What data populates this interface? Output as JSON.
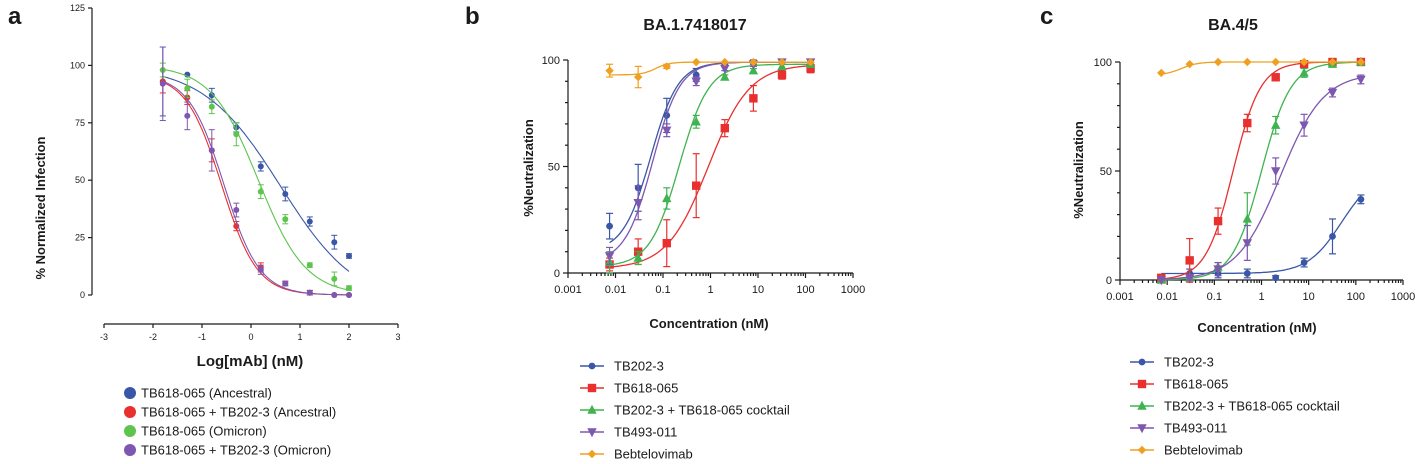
{
  "chart_data": [
    {
      "panel": "a",
      "type": "scatter",
      "title": "",
      "xlabel": "Log[mAb] (nM)",
      "ylabel": "% Normalized Infection",
      "xlim": [
        -3,
        3
      ],
      "ylim": [
        0,
        125
      ],
      "xticks": [
        -3,
        -2,
        -1,
        0,
        1,
        2,
        3
      ],
      "yticks": [
        0,
        25,
        50,
        75,
        100,
        125
      ],
      "legend_position": "bottom",
      "legend_marker": "circle",
      "series": [
        {
          "name": "TB618-065 (Ancestral)",
          "color": "#3a57a7",
          "x": [
            -1.8,
            -1.3,
            -0.8,
            -0.3,
            0.2,
            0.7,
            1.2,
            1.7,
            2.0
          ],
          "y": [
            93,
            96,
            87,
            73,
            56,
            44,
            32,
            23,
            17
          ],
          "err": [
            15,
            0,
            3,
            2,
            2,
            3,
            2,
            3,
            1
          ],
          "fit": {
            "top": 100,
            "bottom": -5,
            "ec50": 0.6,
            "slope": -0.55
          }
        },
        {
          "name": "TB618-065 + TB202-3 (Ancestral)",
          "color": "#e8302f",
          "x": [
            -1.8,
            -1.3,
            -0.8,
            -0.3,
            0.2,
            0.7,
            1.2,
            1.7,
            2.0
          ],
          "y": [
            93,
            86,
            63,
            30,
            12,
            5,
            1,
            0,
            0
          ],
          "err": [
            5,
            3,
            5,
            2,
            2,
            1,
            1,
            0,
            0
          ],
          "fit": {
            "top": 96,
            "bottom": 0,
            "ec50": -0.6,
            "slope": -1.2
          }
        },
        {
          "name": "TB618-065 (Omicron)",
          "color": "#5ec44e",
          "x": [
            -1.8,
            -1.3,
            -0.8,
            -0.3,
            0.2,
            0.7,
            1.2,
            1.7,
            2.0
          ],
          "y": [
            98,
            90,
            82,
            70,
            45,
            33,
            13,
            7,
            3
          ],
          "err": [
            3,
            4,
            3,
            5,
            3,
            2,
            1,
            3,
            1
          ],
          "fit": {
            "top": 100,
            "bottom": 0,
            "ec50": 0.15,
            "slope": -0.9
          }
        },
        {
          "name": "TB618-065 + TB202-3 (Omicron)",
          "color": "#7e57b0",
          "x": [
            -1.8,
            -1.3,
            -0.8,
            -0.3,
            0.2,
            0.7,
            1.2,
            1.7,
            2.0
          ],
          "y": [
            92,
            78,
            63,
            37,
            11,
            5,
            1,
            0,
            0
          ],
          "err": [
            16,
            6,
            9,
            3,
            2,
            1,
            1,
            0,
            0
          ]
        }
      ]
    },
    {
      "panel": "b",
      "type": "scatter",
      "title": "BA.1.7418017",
      "xlabel": "Concentration (nM)",
      "ylabel": "%Neutralization",
      "xscale": "log",
      "xlim": [
        0.001,
        1000
      ],
      "ylim": [
        0,
        100
      ],
      "xticks": [
        "0.001",
        "0.01",
        "0.1",
        "1",
        "10",
        "100",
        "1000"
      ],
      "yticks": [
        0,
        50,
        100
      ],
      "legend_position": "bottom",
      "series": [
        {
          "name": "TB202-3",
          "color": "#3a57a7",
          "marker": "circle",
          "x": [
            0.0075,
            0.03,
            0.12,
            0.5,
            2,
            8,
            32,
            128
          ],
          "y": [
            22,
            40,
            74,
            93,
            98,
            99,
            99,
            99
          ],
          "err": [
            6,
            11,
            8,
            3,
            1,
            1,
            1,
            0
          ],
          "fit": {
            "bottom": 10,
            "top": 99,
            "ec50": 0.055,
            "hill": 1.5
          }
        },
        {
          "name": "TB618-065",
          "color": "#e8302f",
          "marker": "square",
          "x": [
            0.0075,
            0.03,
            0.12,
            0.5,
            2,
            8,
            32,
            128
          ],
          "y": [
            4,
            10,
            14,
            41,
            68,
            82,
            93,
            96
          ],
          "err": [
            3,
            6,
            11,
            15,
            4,
            6,
            2,
            2
          ],
          "fit": {
            "bottom": 2,
            "top": 98,
            "ec50": 0.9,
            "hill": 1.0
          }
        },
        {
          "name": "TB202-3 + TB618-065 cocktail",
          "color": "#3fb34f",
          "marker": "triangle",
          "x": [
            0.0075,
            0.03,
            0.12,
            0.5,
            2,
            8,
            32,
            128
          ],
          "y": [
            5,
            7,
            35,
            71,
            92,
            95,
            97,
            98
          ],
          "err": [
            5,
            3,
            5,
            3,
            1,
            1,
            0,
            0
          ],
          "fit": {
            "bottom": 3,
            "top": 98,
            "ec50": 0.22,
            "hill": 1.4
          }
        },
        {
          "name": "TB493-011",
          "color": "#7e57b0",
          "marker": "triangle-down",
          "x": [
            0.0075,
            0.03,
            0.12,
            0.5,
            2,
            8,
            32,
            128
          ],
          "y": [
            8,
            33,
            67,
            90,
            96,
            98,
            99,
            99
          ],
          "err": [
            4,
            8,
            3,
            2,
            1,
            1,
            0,
            0
          ],
          "fit": {
            "bottom": 5,
            "top": 99,
            "ec50": 0.06,
            "hill": 1.5
          }
        },
        {
          "name": "Bebtelovimab",
          "color": "#f0a020",
          "marker": "diamond",
          "x": [
            0.0075,
            0.03,
            0.12,
            0.5,
            2,
            8,
            32,
            128
          ],
          "y": [
            95,
            92,
            97,
            99,
            99,
            99,
            99,
            99
          ],
          "err": [
            3,
            5,
            1,
            0,
            0,
            0,
            0,
            0
          ],
          "fit": {
            "bottom": 93,
            "top": 99,
            "ec50": 0.07,
            "hill": 3
          }
        }
      ]
    },
    {
      "panel": "c",
      "type": "scatter",
      "title": "BA.4/5",
      "xlabel": "Concentration (nM)",
      "ylabel": "%Neutralization",
      "xscale": "log",
      "xlim": [
        0.001,
        1000
      ],
      "ylim": [
        0,
        100
      ],
      "xticks": [
        "0.001",
        "0.01",
        "0.1",
        "1",
        "10",
        "100",
        "1000"
      ],
      "yticks": [
        0,
        50,
        100
      ],
      "legend_position": "bottom",
      "series": [
        {
          "name": "TB202-3",
          "color": "#3a57a7",
          "marker": "circle",
          "x": [
            0.0075,
            0.03,
            0.12,
            0.5,
            2,
            8,
            32,
            128
          ],
          "y": [
            1,
            3,
            3,
            3,
            1,
            8,
            20,
            37
          ],
          "err": [
            0,
            2,
            2,
            2,
            1,
            2,
            8,
            2
          ],
          "fit": {
            "bottom": 3,
            "top": 50,
            "ec50": 50,
            "hill": 1.2
          }
        },
        {
          "name": "TB618-065",
          "color": "#e8302f",
          "marker": "square",
          "x": [
            0.0075,
            0.03,
            0.12,
            0.5,
            2,
            8,
            32,
            128
          ],
          "y": [
            1,
            9,
            27,
            72,
            93,
            99,
            100,
            100
          ],
          "err": [
            1,
            10,
            6,
            4,
            1,
            0,
            0,
            0
          ],
          "fit": {
            "bottom": 0,
            "top": 100,
            "ec50": 0.25,
            "hill": 1.5
          }
        },
        {
          "name": "TB202-3 + TB618-065 cocktail",
          "color": "#3fb34f",
          "marker": "triangle",
          "x": [
            0.0075,
            0.03,
            0.12,
            0.5,
            2,
            8,
            32,
            128
          ],
          "y": [
            0,
            1,
            6,
            28,
            71,
            95,
            99,
            100
          ],
          "err": [
            0,
            1,
            2,
            12,
            4,
            2,
            0,
            0
          ],
          "fit": {
            "bottom": 0,
            "top": 100,
            "ec50": 1.0,
            "hill": 1.4
          }
        },
        {
          "name": "TB493-011",
          "color": "#7e57b0",
          "marker": "triangle-down",
          "x": [
            0.0075,
            0.03,
            0.12,
            0.5,
            2,
            8,
            32,
            128
          ],
          "y": [
            0,
            1,
            5,
            17,
            50,
            71,
            86,
            92
          ],
          "err": [
            0,
            1,
            3,
            8,
            6,
            5,
            2,
            2
          ],
          "fit": {
            "bottom": 0,
            "top": 95,
            "ec50": 2.5,
            "hill": 0.95
          }
        },
        {
          "name": "Bebtelovimab",
          "color": "#f0a020",
          "marker": "diamond",
          "x": [
            0.0075,
            0.03,
            0.12,
            0.5,
            2,
            8,
            32,
            128
          ],
          "y": [
            95,
            99,
            100,
            100,
            100,
            100,
            100,
            100
          ],
          "err": [
            0,
            0,
            0,
            0,
            0,
            0,
            0,
            0
          ],
          "fit": {
            "bottom": 94,
            "top": 100,
            "ec50": 0.02,
            "hill": 2.5
          }
        }
      ]
    }
  ]
}
